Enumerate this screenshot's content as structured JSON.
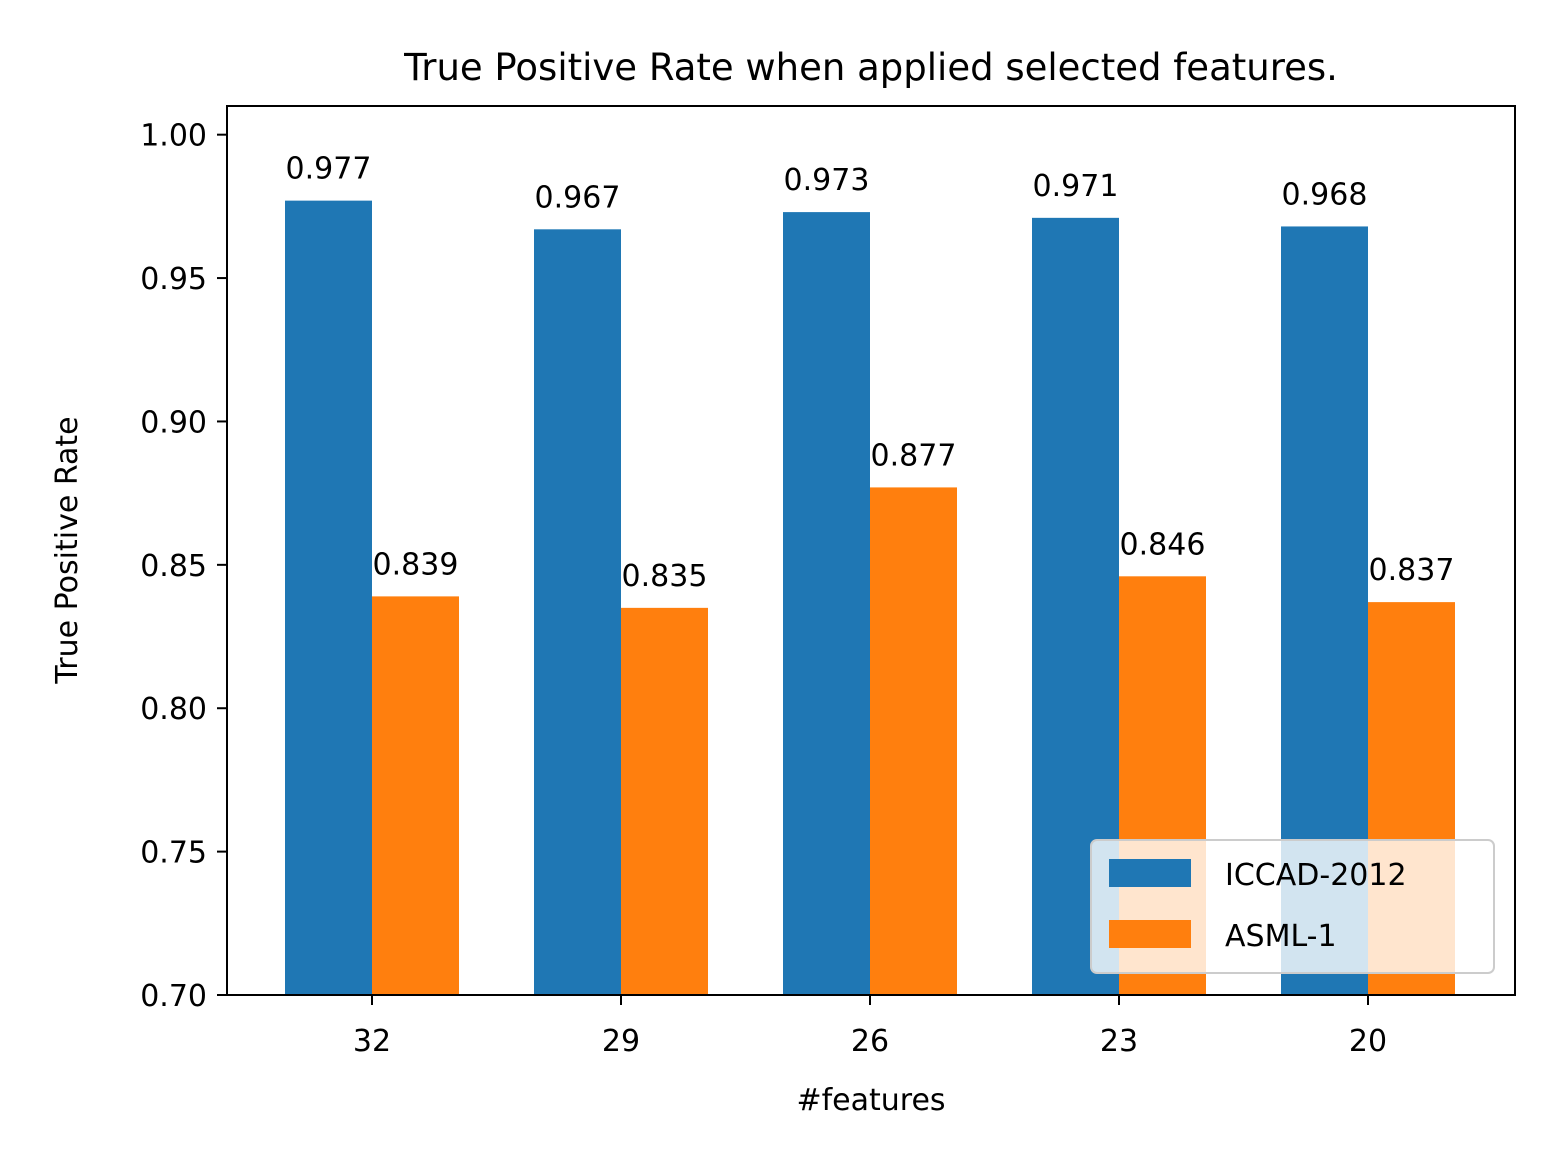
{
  "chart_data": {
    "type": "bar",
    "title": "True Positive Rate when applied selected features.",
    "xlabel": "#features",
    "ylabel": "True Positive Rate",
    "categories": [
      "32",
      "29",
      "26",
      "23",
      "20"
    ],
    "series": [
      {
        "name": "ICCAD-2012",
        "color": "#1f77b4",
        "values": [
          0.977,
          0.967,
          0.973,
          0.971,
          0.968
        ],
        "labels": [
          "0.977",
          "0.967",
          "0.973",
          "0.971",
          "0.968"
        ]
      },
      {
        "name": "ASML-1",
        "color": "#ff7f0e",
        "values": [
          0.839,
          0.835,
          0.877,
          0.846,
          0.837
        ],
        "labels": [
          "0.839",
          "0.835",
          "0.877",
          "0.846",
          "0.837"
        ]
      }
    ],
    "ylim": [
      0.7,
      1.01
    ],
    "yticks": [
      0.7,
      0.75,
      0.8,
      0.85,
      0.9,
      0.95,
      1.0
    ],
    "ytick_labels": [
      "0.70",
      "0.75",
      "0.80",
      "0.85",
      "0.90",
      "0.95",
      "1.00"
    ],
    "grid": false,
    "legend_position": "lower-right"
  }
}
